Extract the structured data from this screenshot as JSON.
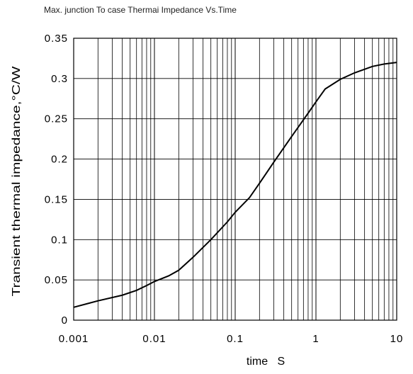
{
  "chart_data": {
    "type": "line",
    "title": "Max. junction To case Thermai Impedance Vs.Time",
    "xlabel": "time   S",
    "ylabel": "Transient thermal impedance,°C/W",
    "xscale": "log",
    "xlim": [
      0.001,
      10
    ],
    "ylim": [
      0,
      0.35
    ],
    "x_ticks": [
      0.001,
      0.01,
      0.1,
      1,
      10
    ],
    "x_tick_labels": [
      "0.001",
      "0.01",
      "0.1",
      "1",
      "10"
    ],
    "y_ticks": [
      0,
      0.05,
      0.1,
      0.15,
      0.2,
      0.25,
      0.3,
      0.35
    ],
    "y_tick_labels": [
      "0",
      "0.05",
      "0.1",
      "0.15",
      "0.2",
      "0.25",
      "0.3",
      "0.35"
    ],
    "grid": true,
    "line_color": "#000000",
    "series": [
      {
        "x": [
          0.001,
          0.002,
          0.004,
          0.006,
          0.008,
          0.01,
          0.015,
          0.02,
          0.03,
          0.05,
          0.08,
          0.1,
          0.15,
          0.2,
          0.3,
          0.5,
          0.8,
          1,
          1.3,
          2,
          3,
          5,
          7,
          10
        ],
        "y": [
          0.016,
          0.024,
          0.031,
          0.037,
          0.043,
          0.048,
          0.055,
          0.062,
          0.078,
          0.1,
          0.122,
          0.134,
          0.152,
          0.17,
          0.196,
          0.228,
          0.257,
          0.271,
          0.287,
          0.299,
          0.307,
          0.315,
          0.318,
          0.32
        ]
      }
    ]
  }
}
